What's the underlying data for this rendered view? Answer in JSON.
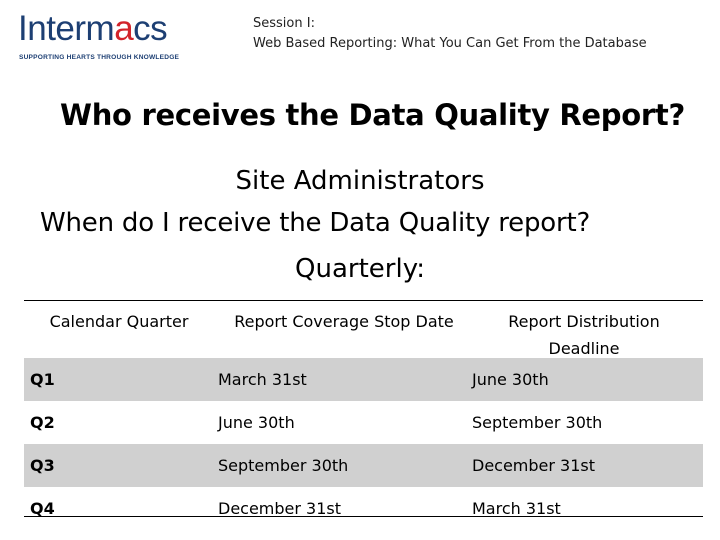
{
  "logo": {
    "word_main": "Interm",
    "word_accent": "a",
    "word_end": "cs",
    "tagline": "SUPPORTING HEARTS THROUGH KNOWLEDGE"
  },
  "session": {
    "line1": "Session I:",
    "line2": "Web Based Reporting: What You Can Get From the Database"
  },
  "question1": "Who receives the Data Quality Report?",
  "answer1": "Site Administrators",
  "question2": "When do I receive the Data Quality report?",
  "answer2": "Quarterly:",
  "table": {
    "headers": [
      "Calendar Quarter",
      "Report Coverage Stop Date",
      "Report Distribution Deadline"
    ],
    "rows": [
      [
        "Q1",
        "March 31st",
        "June 30th"
      ],
      [
        "Q2",
        "June 30th",
        "September 30th"
      ],
      [
        "Q3",
        "September 30th",
        "December 31st"
      ],
      [
        "Q4",
        "December 31st",
        "March 31st"
      ]
    ]
  },
  "colors": {
    "brand_blue": "#1d3f73",
    "brand_red": "#d2232a",
    "row_shade": "#d0d0d0"
  }
}
